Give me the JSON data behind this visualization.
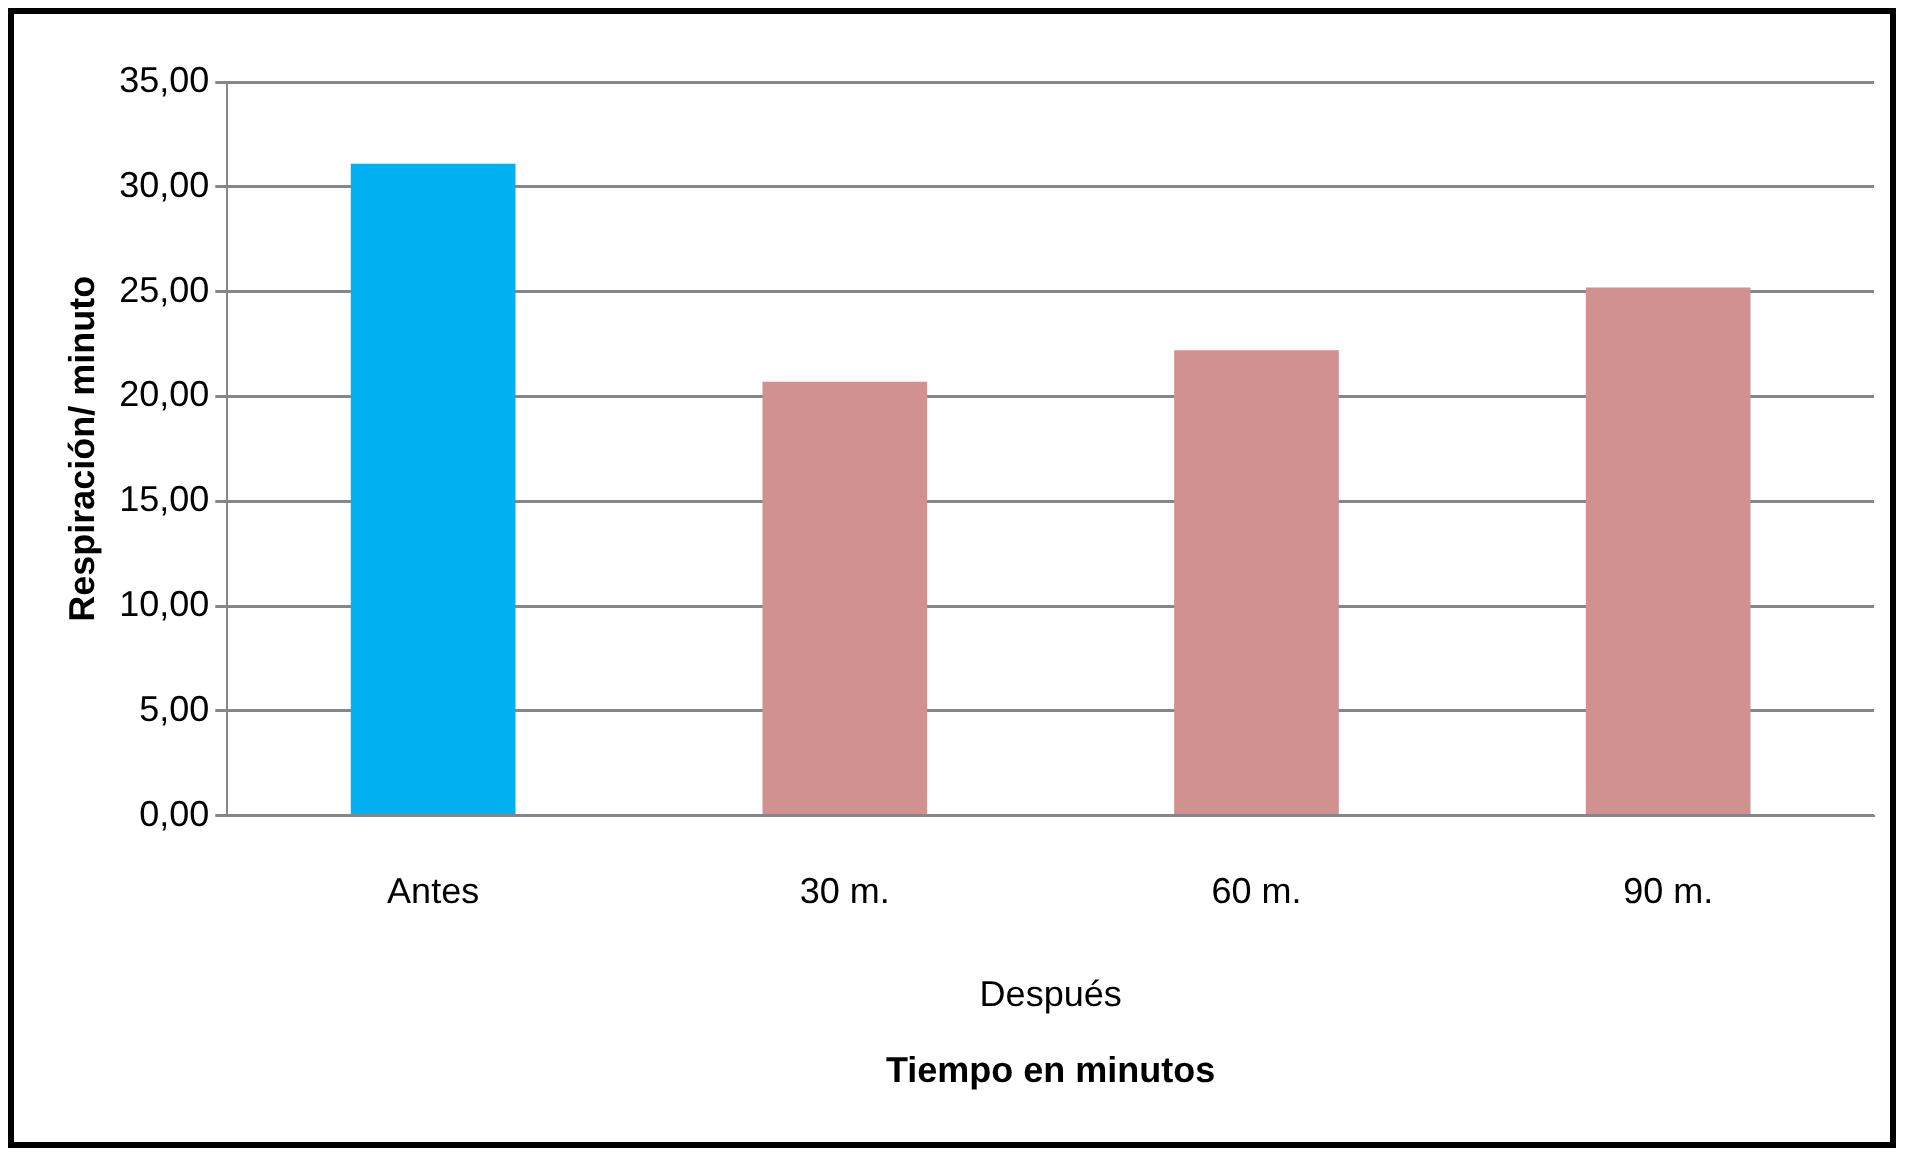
{
  "chart_data": {
    "type": "bar",
    "xlabel": "Tiempo en minutos",
    "ylabel": "Respiración/ minuto",
    "categories": [
      "Antes",
      "30 m.",
      "60 m.",
      "90 m."
    ],
    "values": [
      31.1,
      20.7,
      22.2,
      25.2
    ],
    "colors": [
      "#00b0f0",
      "#d19190",
      "#d19190",
      "#d19190"
    ],
    "ylim": [
      0,
      35
    ],
    "yticks": [
      {
        "value": 0,
        "label": "0,00"
      },
      {
        "value": 5,
        "label": "5,00"
      },
      {
        "value": 10,
        "label": "10,00"
      },
      {
        "value": 15,
        "label": "15,00"
      },
      {
        "value": 20,
        "label": "20,00"
      },
      {
        "value": 25,
        "label": "25,00"
      },
      {
        "value": 30,
        "label": "30,00"
      },
      {
        "value": 35,
        "label": "35,00"
      }
    ],
    "annotations": [
      "Después"
    ],
    "grid": "y",
    "legend": false
  }
}
